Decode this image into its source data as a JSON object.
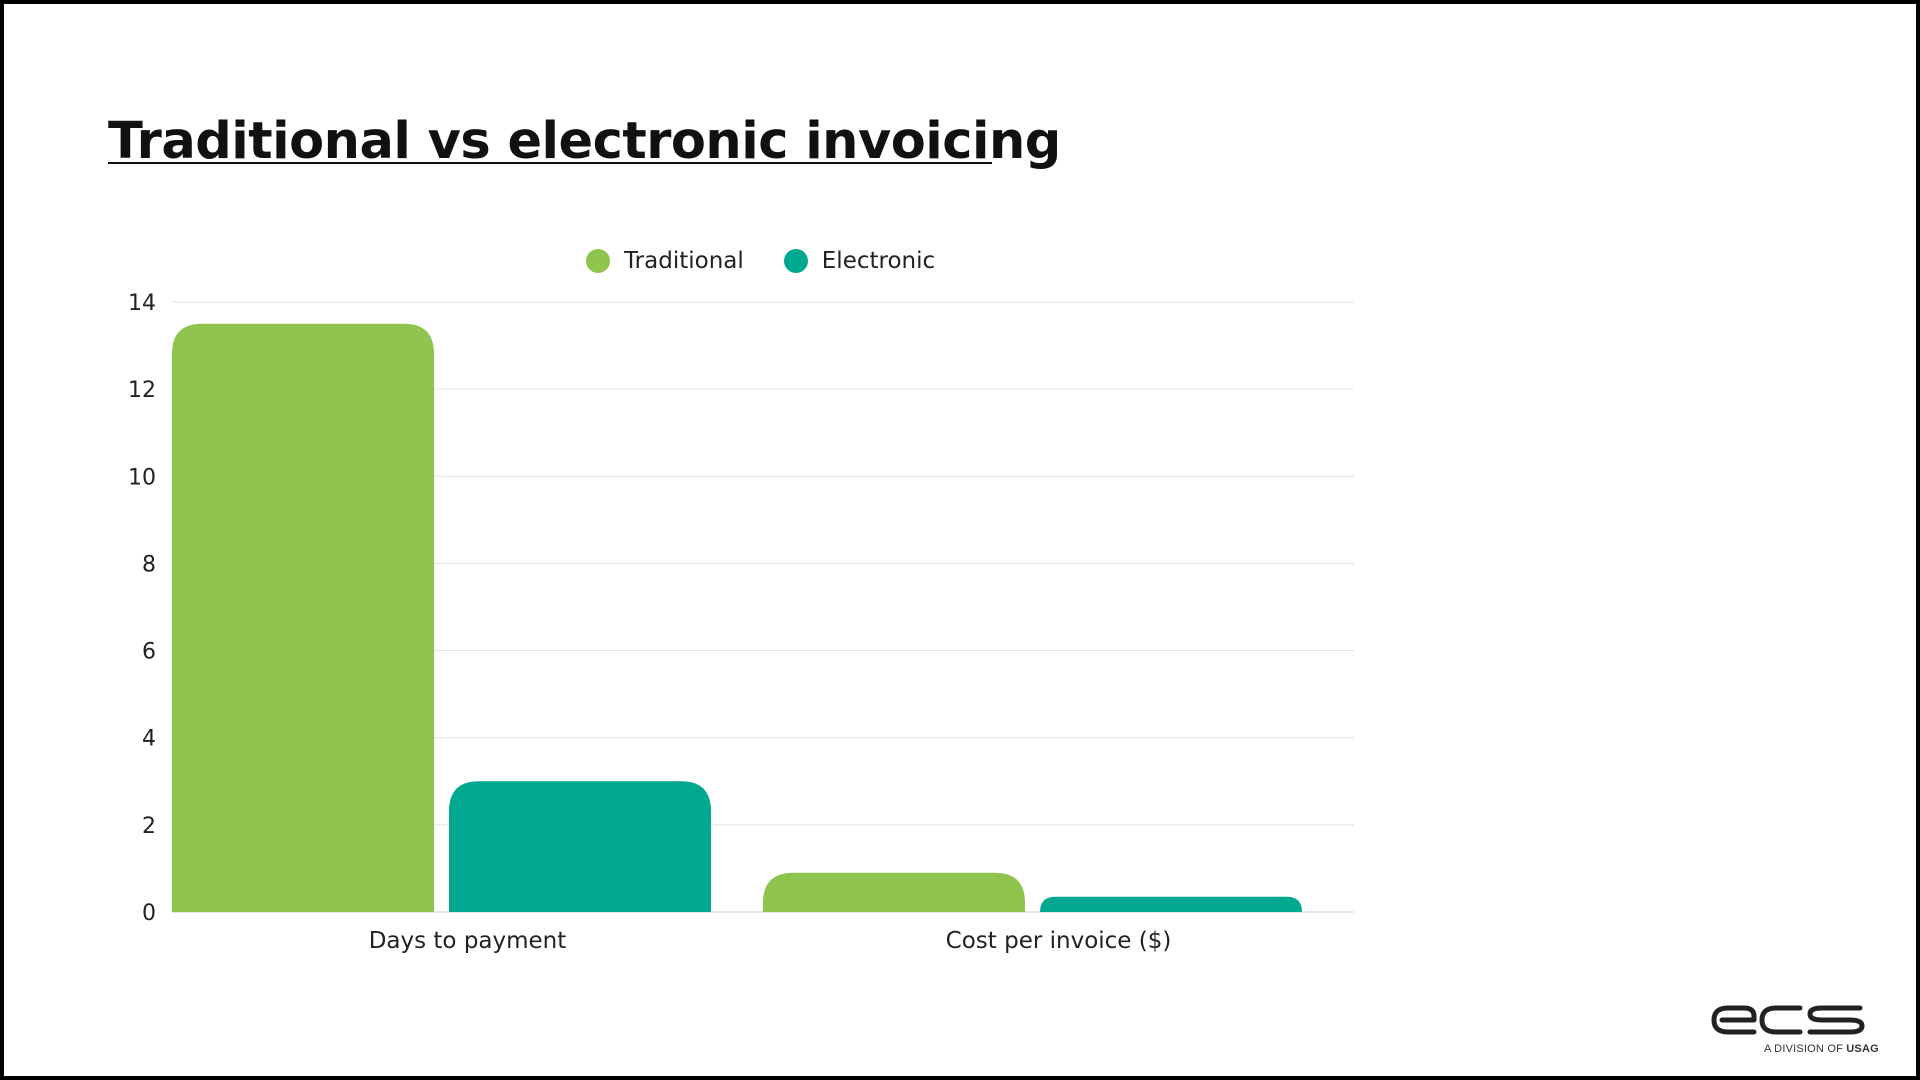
{
  "slide": {
    "title": "Traditional vs electronic invoicing"
  },
  "logo": {
    "brand": "ecs",
    "tagline_prefix": "A DIVISION OF",
    "tagline_brand": "USAG"
  },
  "colors": {
    "traditional": "#8fc44e",
    "electronic": "#00a88f",
    "grid": "#e3e3e3",
    "text": "#222222"
  },
  "chart_data": {
    "type": "bar",
    "title": "Traditional vs electronic invoicing",
    "xlabel": "",
    "ylabel": "",
    "categories": [
      "Days to payment",
      "Cost per invoice ($)"
    ],
    "series": [
      {
        "name": "Traditional",
        "values": [
          13.5,
          0.9
        ]
      },
      {
        "name": "Electronic",
        "values": [
          3.0,
          0.35
        ]
      }
    ],
    "ylim": [
      0,
      14
    ],
    "yticks": [
      "0",
      "2",
      "4",
      "6",
      "8",
      "10",
      "12",
      "14"
    ],
    "grid": true,
    "legend_position": "top-center"
  }
}
